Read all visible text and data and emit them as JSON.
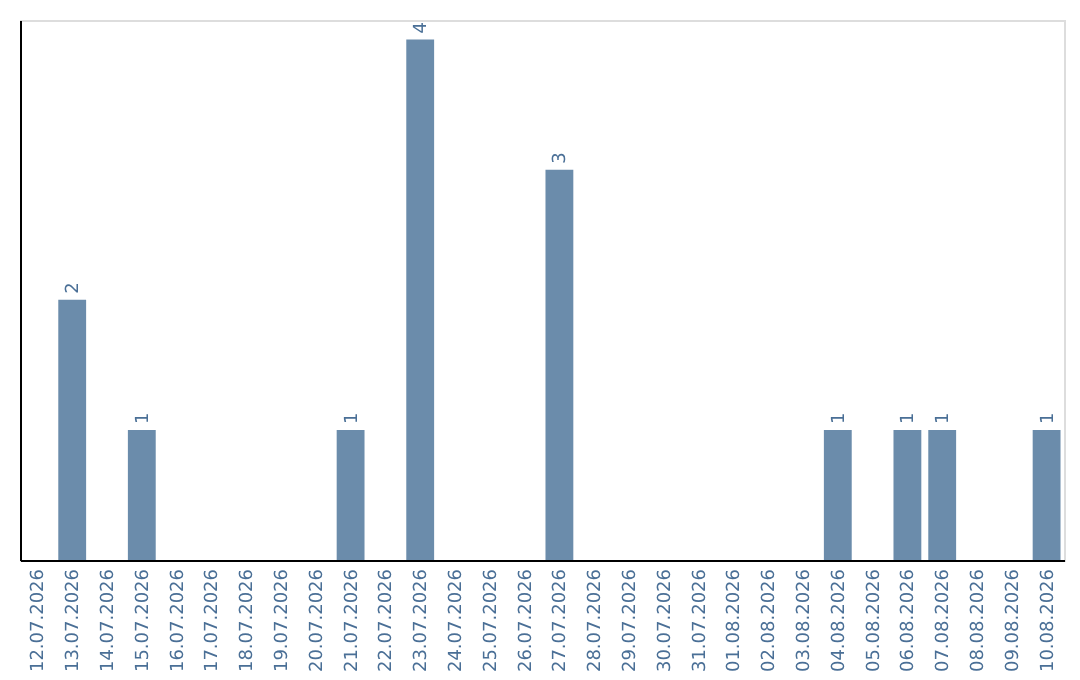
{
  "chart_data": {
    "type": "bar",
    "categories": [
      "12.07.2026",
      "13.07.2026",
      "14.07.2026",
      "15.07.2026",
      "16.07.2026",
      "17.07.2026",
      "18.07.2026",
      "19.07.2026",
      "20.07.2026",
      "21.07.2026",
      "22.07.2026",
      "23.07.2026",
      "24.07.2026",
      "25.07.2026",
      "26.07.2026",
      "27.07.2026",
      "28.07.2026",
      "29.07.2026",
      "30.07.2026",
      "31.07.2026",
      "01.08.2026",
      "02.08.2026",
      "03.08.2026",
      "04.08.2026",
      "05.08.2026",
      "06.08.2026",
      "07.08.2026",
      "08.08.2026",
      "09.08.2026",
      "10.08.2026"
    ],
    "values": [
      0,
      2,
      0,
      1,
      0,
      0,
      0,
      0,
      0,
      1,
      0,
      4,
      0,
      0,
      0,
      3,
      0,
      0,
      0,
      0,
      0,
      0,
      0,
      1,
      0,
      1,
      1,
      0,
      0,
      1
    ],
    "value_labels": [
      null,
      "2",
      null,
      "1",
      null,
      null,
      null,
      null,
      null,
      "1",
      null,
      "4",
      null,
      null,
      null,
      "3",
      null,
      null,
      null,
      null,
      null,
      null,
      null,
      "1",
      null,
      "1",
      "1",
      null,
      null,
      "1"
    ],
    "color": "#6b8cab",
    "ylim": [
      0,
      4.15
    ],
    "tick_labels": "x",
    "grid": false
  }
}
